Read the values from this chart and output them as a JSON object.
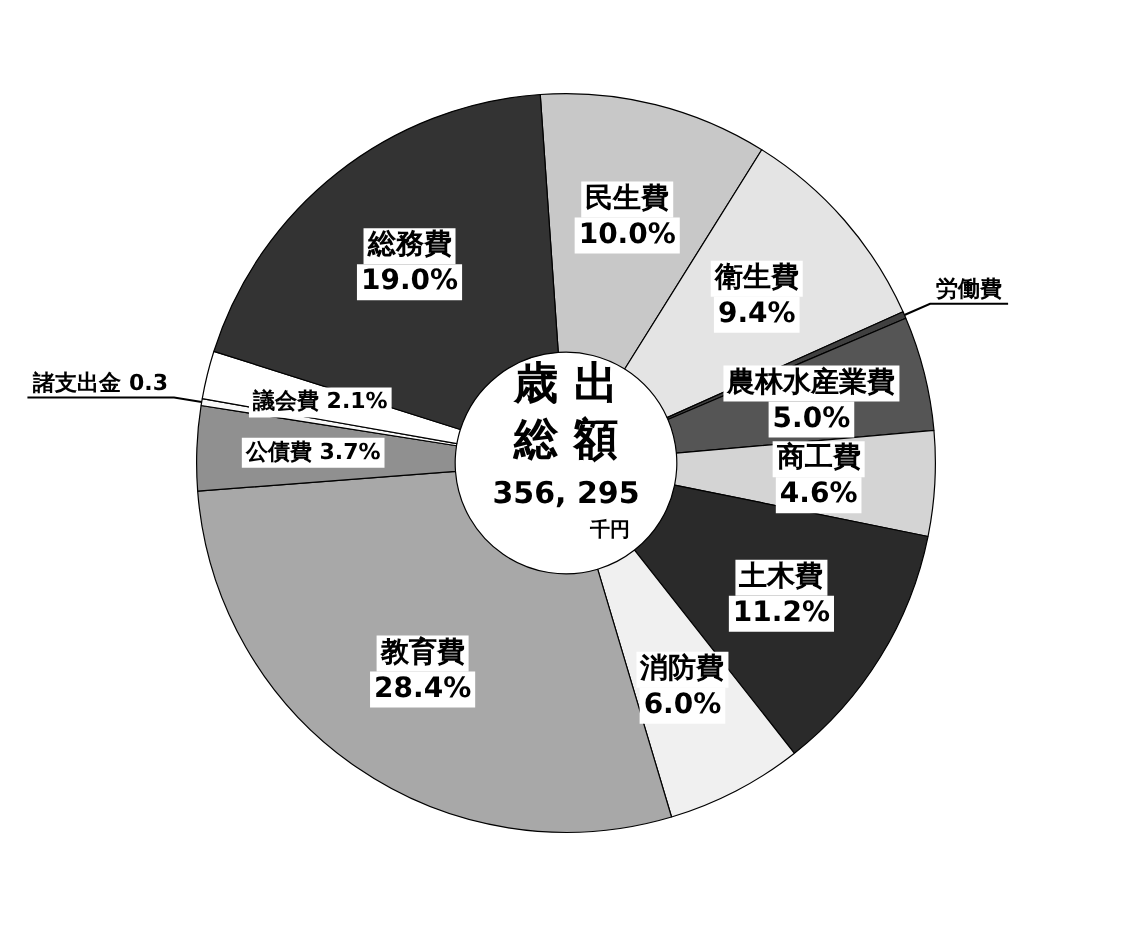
{
  "chart_data": {
    "type": "donut",
    "title": "歳出総額",
    "annotations": [
      "356, 295",
      "千円"
    ],
    "categories": [
      "民生費",
      "衛生費",
      "労働費",
      "農林水産業費",
      "商工費",
      "土木費",
      "消防費",
      "教育費",
      "公債費",
      "諸支出金",
      "議会費",
      "総務費"
    ],
    "values": [
      10.0,
      9.4,
      0.3,
      5.0,
      4.6,
      11.2,
      6.0,
      28.4,
      3.7,
      0.3,
      2.1,
      19.0
    ],
    "value_labels": [
      "10.0%",
      "9.4%",
      null,
      "5.0%",
      "4.6%",
      "11.2%",
      "6.0%",
      "28.4%",
      "3.7%",
      "0.3",
      "2.1%",
      "19.0%"
    ],
    "colors": [
      "#c8c8c8",
      "#e4e4e4",
      "#404040",
      "#555555",
      "#d4d4d4",
      "#2a2a2a",
      "#f0f0f0",
      "#a8a8a8",
      "#909090",
      "#f8f8f8",
      "#ffffff",
      "#333333"
    ],
    "legend": false
  }
}
